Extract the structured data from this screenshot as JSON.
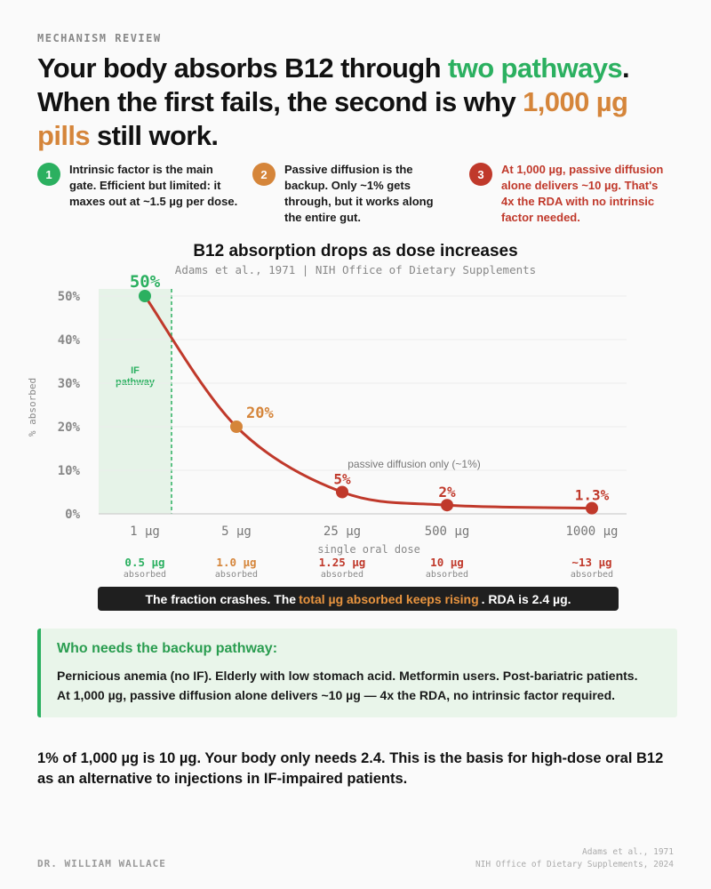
{
  "eyebrow": "MECHANISM REVIEW",
  "headline": {
    "part1": "Your body absorbs B12 through ",
    "green": "two pathways",
    "part2": ". When the first fails, the second is why ",
    "orange": "1,000 µg pills",
    "part3": " still work."
  },
  "points": [
    {
      "num": "1",
      "text": "Intrinsic factor is the main gate. Efficient but limited: it maxes out at ~1.5 µg per dose."
    },
    {
      "num": "2",
      "text": "Passive diffusion is the backup. Only ~1% gets through, but it works along the entire gut."
    },
    {
      "num": "3",
      "text": "At 1,000 µg, passive diffusion alone delivers ~10 µg. That's 4x the RDA with no intrinsic factor needed."
    }
  ],
  "chart": {
    "title": "B12 absorption drops as dose increases",
    "subtitle": "Adams et al., 1971 | NIH Office of Dietary Supplements",
    "ylabel": "% absorbed",
    "xlabel": "single oral dose",
    "if_label": [
      "IF",
      "pathway"
    ],
    "passive_label": "passive diffusion only (~1%)"
  },
  "chart_data": {
    "type": "line",
    "categories": [
      "1 µg",
      "5 µg",
      "25 µg",
      "500 µg",
      "1000 µg"
    ],
    "values": [
      50,
      20,
      5,
      2,
      1.3
    ],
    "value_labels": [
      "50%",
      "20%",
      "5%",
      "2%",
      "1.3%"
    ],
    "yticks": [
      "0%",
      "10%",
      "20%",
      "30%",
      "40%",
      "50%"
    ],
    "ylim": [
      0,
      50
    ],
    "absorbed_amounts": [
      "0.5 µg",
      "1.0 µg",
      "1.25 µg",
      "10 µg",
      "~13 µg"
    ],
    "absorbed_word": "absorbed",
    "grid": true
  },
  "colors": {
    "green": "#2bb060",
    "orange": "#d5853a",
    "red": "#c0392b",
    "line": "#c0392b"
  },
  "banner": {
    "part1": "The fraction crashes. The",
    "orange": "total µg absorbed keeps rising",
    "part2": ". RDA is 2.4 µg."
  },
  "callout": {
    "title": "Who needs the backup pathway:",
    "body": "Pernicious anemia (no IF). Elderly with low stomach acid. Metformin users. Post-bariatric patients. At 1,000 µg, passive diffusion alone delivers ~10 µg — 4x the RDA, no intrinsic factor required."
  },
  "summary": "1% of 1,000 µg is 10 µg. Your body only needs 2.4. This is the basis for high-dose oral B12 as an alternative to injections in IF-impaired patients.",
  "footer": {
    "author": "DR. WILLIAM WALLACE",
    "source1": "Adams et al., 1971",
    "source2": "NIH Office of Dietary Supplements, 2024"
  }
}
